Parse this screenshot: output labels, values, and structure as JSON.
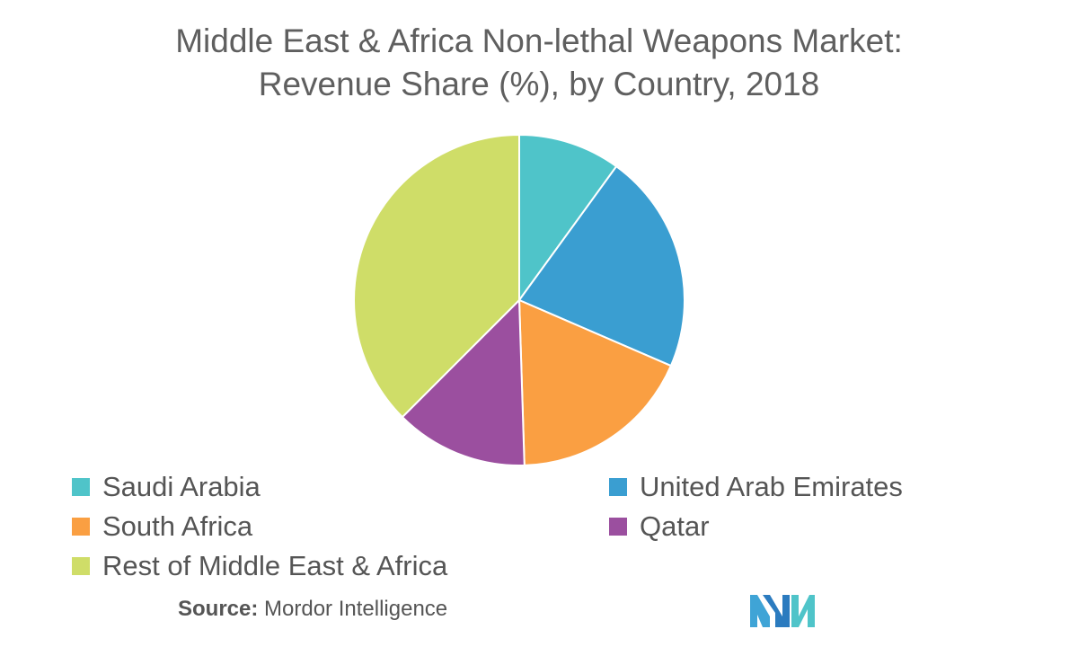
{
  "title": {
    "line1": "Middle East & Africa Non-lethal Weapons Market:",
    "line2": "Revenue Share (%), by Country, 2018"
  },
  "chart_data": {
    "type": "pie",
    "title": "Middle East & Africa Non-lethal Weapons Market: Revenue Share (%), by Country, 2018",
    "labels": [
      "Saudi Arabia",
      "United Arab Emirates",
      "South Africa",
      "Qatar",
      "Rest of Middle East & Africa"
    ],
    "values": [
      10,
      21.5,
      18,
      13,
      37.5
    ],
    "colors": [
      "#4fc4c9",
      "#3a9ed1",
      "#fa9f42",
      "#9b4f9f",
      "#cfdd68"
    ],
    "legend_position": "bottom"
  },
  "source": {
    "label": "Source:",
    "text": "Mordor Intelligence"
  },
  "logo": {
    "icon": "mordor-intelligence-logo-icon"
  }
}
